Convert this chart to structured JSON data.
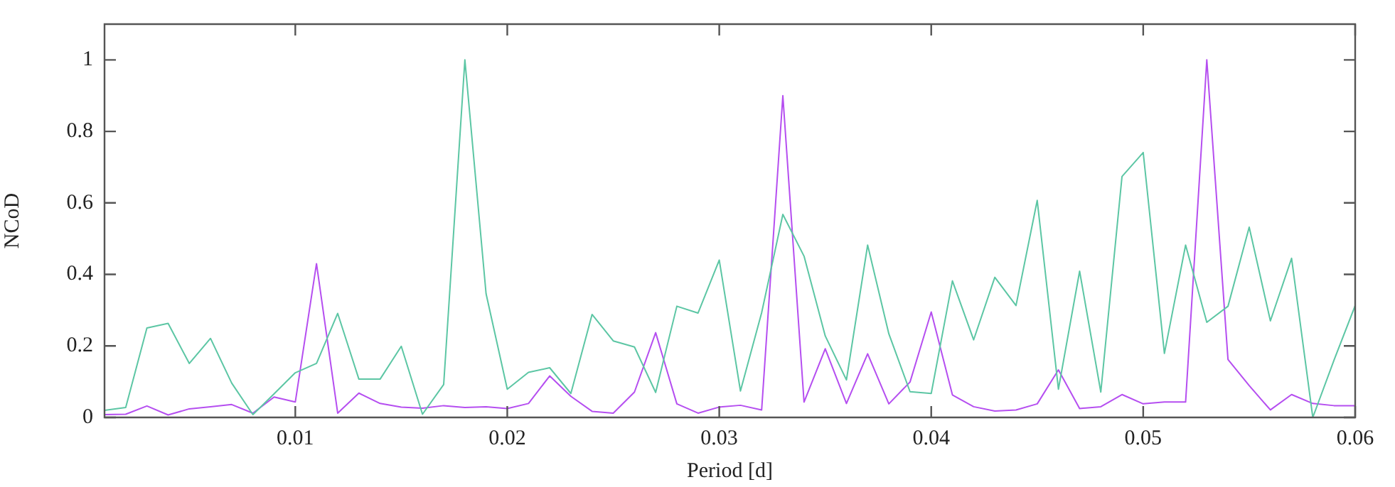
{
  "chart_data": {
    "type": "line",
    "xlabel": "Period [d]",
    "ylabel": "NCoD",
    "x": [
      0.001,
      0.002,
      0.003,
      0.004,
      0.005,
      0.006,
      0.007,
      0.008,
      0.009,
      0.01,
      0.011,
      0.012,
      0.013,
      0.014,
      0.015,
      0.016,
      0.017,
      0.018,
      0.019,
      0.02,
      0.021,
      0.022,
      0.023,
      0.024,
      0.025,
      0.026,
      0.027,
      0.028,
      0.029,
      0.03,
      0.031,
      0.032,
      0.033,
      0.034,
      0.035,
      0.036,
      0.037,
      0.038,
      0.039,
      0.04,
      0.041,
      0.042,
      0.043,
      0.044,
      0.045,
      0.046,
      0.047,
      0.048,
      0.049,
      0.05,
      0.051,
      0.052,
      0.053,
      0.054,
      0.055,
      0.056,
      0.057,
      0.058,
      0.059,
      0.06
    ],
    "series": [
      {
        "color": "#5cc6a4",
        "values": [
          0.02,
          0.028,
          0.25,
          0.263,
          0.151,
          0.221,
          0.096,
          0.008,
          0.066,
          0.125,
          0.151,
          0.291,
          0.107,
          0.107,
          0.199,
          0.009,
          0.092,
          1.0,
          0.346,
          0.079,
          0.126,
          0.139,
          0.067,
          0.288,
          0.214,
          0.197,
          0.07,
          0.311,
          0.292,
          0.44,
          0.074,
          0.293,
          0.568,
          0.451,
          0.228,
          0.105,
          0.482,
          0.234,
          0.072,
          0.067,
          0.382,
          0.217,
          0.392,
          0.313,
          0.607,
          0.079,
          0.409,
          0.071,
          0.674,
          0.741,
          0.179,
          0.482,
          0.266,
          0.311,
          0.532,
          0.27,
          0.445,
          0.0,
          0.16,
          0.313
        ]
      },
      {
        "color": "#b54ef0",
        "values": [
          0.008,
          0.009,
          0.032,
          0.007,
          0.024,
          0.03,
          0.036,
          0.012,
          0.057,
          0.043,
          0.43,
          0.012,
          0.068,
          0.039,
          0.029,
          0.026,
          0.033,
          0.028,
          0.03,
          0.025,
          0.039,
          0.116,
          0.059,
          0.017,
          0.012,
          0.071,
          0.237,
          0.038,
          0.012,
          0.029,
          0.034,
          0.021,
          0.9,
          0.043,
          0.192,
          0.039,
          0.178,
          0.038,
          0.099,
          0.295,
          0.063,
          0.03,
          0.018,
          0.021,
          0.038,
          0.133,
          0.025,
          0.03,
          0.064,
          0.038,
          0.043,
          0.043,
          1.0,
          0.162,
          0.089,
          0.021,
          0.064,
          0.039,
          0.033,
          0.033
        ]
      }
    ],
    "xlim": [
      0.001,
      0.06
    ],
    "xticks": [
      0.01,
      0.02,
      0.03,
      0.04,
      0.05,
      0.06
    ],
    "ylim": [
      0,
      1.1
    ],
    "yticks": [
      0,
      0.2,
      0.4,
      0.6,
      0.8,
      1
    ],
    "grid": false,
    "legend": false,
    "marker": "none",
    "line_style": "solid"
  }
}
